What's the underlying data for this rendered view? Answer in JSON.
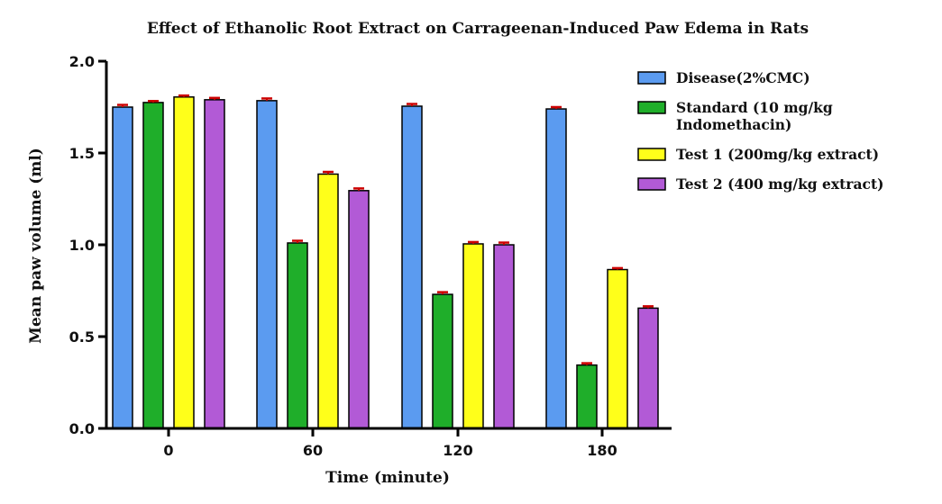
{
  "chart_data": {
    "type": "bar",
    "title": "Effect of Ethanolic Root Extract on Carrageenan-Induced Paw Edema in Rats",
    "xlabel": "Time (minute)",
    "ylabel": "Mean paw volume (ml)",
    "ylim": [
      0,
      2.0
    ],
    "yticks": [
      "0.0",
      "0.5",
      "1.0",
      "1.5",
      "2.0"
    ],
    "categories": [
      "0",
      "60",
      "120",
      "180"
    ],
    "legend_position": "right",
    "grid": false,
    "error_bar_color": "#cc0000",
    "series": [
      {
        "name": "Disease(2%CMC)",
        "color": "#5b9bf0",
        "values": [
          1.75,
          1.785,
          1.755,
          1.74
        ],
        "errors": [
          0.012,
          0.012,
          0.012,
          0.01
        ]
      },
      {
        "name": "Standard (10 mg/kg Indomethacin)",
        "legend_lines": [
          "Standard (10 mg/kg",
          "Indomethacin)"
        ],
        "color": "#1fae2a",
        "values": [
          1.775,
          1.01,
          0.73,
          0.345
        ],
        "errors": [
          0.008,
          0.012,
          0.012,
          0.01
        ]
      },
      {
        "name": "Test 1 (200mg/kg extract)",
        "color": "#ffff1a",
        "values": [
          1.805,
          1.385,
          1.005,
          0.865
        ],
        "errors": [
          0.008,
          0.012,
          0.01,
          0.008
        ]
      },
      {
        "name": "Test 2 (400 mg/kg extract)",
        "color": "#b25ad6",
        "values": [
          1.79,
          1.295,
          1.0,
          0.655
        ],
        "errors": [
          0.01,
          0.012,
          0.012,
          0.01
        ]
      }
    ]
  }
}
